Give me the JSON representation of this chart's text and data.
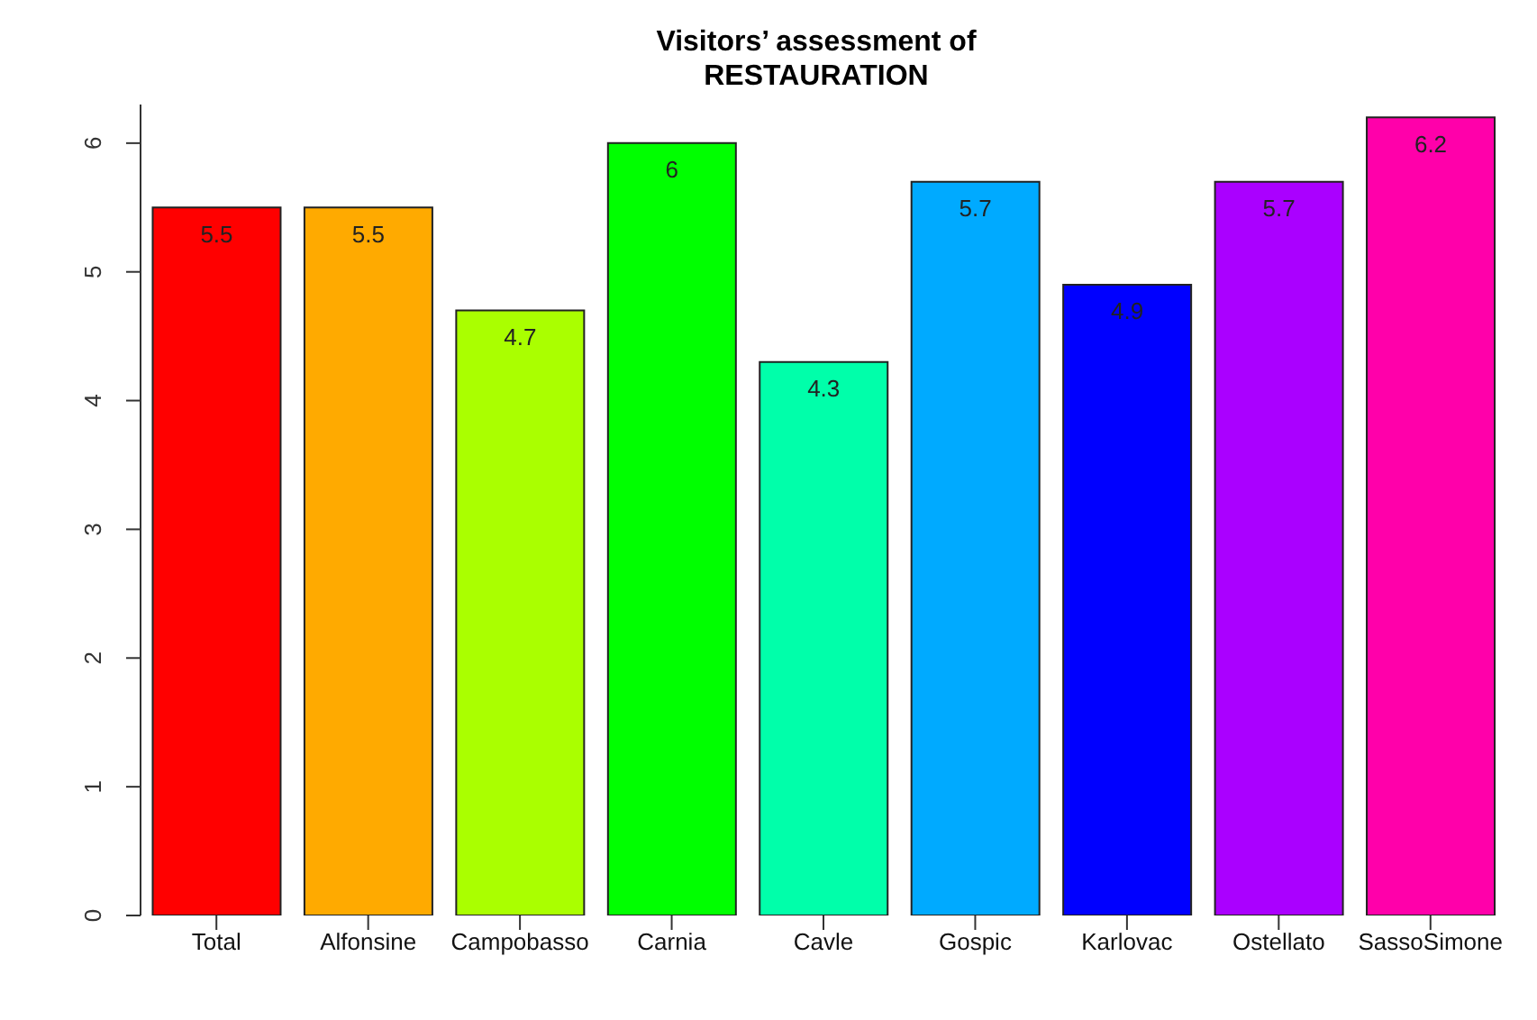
{
  "chart_data": {
    "type": "bar",
    "title": "Visitors’ assessment of\nRESTAURATION",
    "categories": [
      "Total",
      "Alfonsine",
      "Campobasso",
      "Carnia",
      "Cavle",
      "Gospic",
      "Karlovac",
      "Ostellato",
      "SassoSimone"
    ],
    "values": [
      5.5,
      5.5,
      4.7,
      6,
      4.3,
      5.7,
      4.9,
      5.7,
      6.2
    ],
    "colors": [
      "#ff0000",
      "#ffaa00",
      "#aaff00",
      "#00ff00",
      "#00ffaa",
      "#00aaff",
      "#0000ff",
      "#aa00ff",
      "#ff00aa"
    ],
    "ylim": [
      0,
      6.3
    ],
    "yticks": [
      0,
      1,
      2,
      3,
      4,
      5,
      6
    ],
    "data_labels": true
  }
}
